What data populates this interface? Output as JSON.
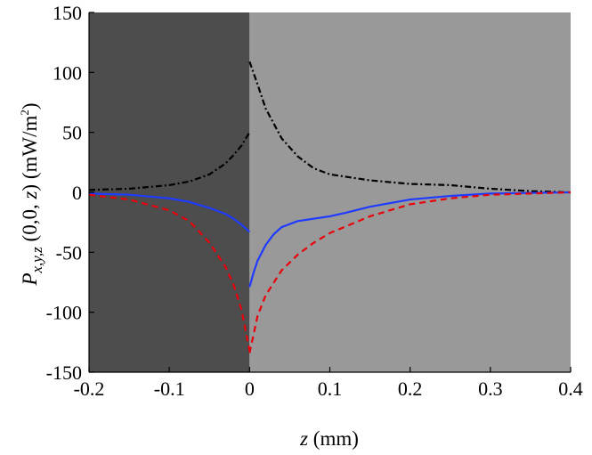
{
  "chart_data": {
    "type": "line",
    "xlabel": {
      "var": "z",
      "unit": " (mm)"
    },
    "ylabel": {
      "prefix": "P",
      "sub": "x,y,z",
      "args": " (0,0, ",
      "argvar": "z",
      "unit": ") (mW/m",
      "sup": "2",
      "close": ")"
    },
    "xlim": [
      -0.2,
      0.4
    ],
    "ylim": [
      -150,
      150
    ],
    "xticks": [
      -0.2,
      -0.1,
      0,
      0.1,
      0.2,
      0.3,
      0.4
    ],
    "xtick_labels": [
      "-0.2",
      "-0.1",
      "0",
      "0.1",
      "0.2",
      "0.3",
      "0.4"
    ],
    "yticks": [
      -150,
      -100,
      -50,
      0,
      50,
      100,
      150
    ],
    "ytick_labels": [
      "-150",
      "-100",
      "-50",
      "0",
      "50",
      "100",
      "150"
    ],
    "regions": [
      {
        "x": [
          -0.2,
          0
        ],
        "color": "#4d4d4d"
      },
      {
        "x": [
          0,
          0.4
        ],
        "color": "#999999"
      }
    ],
    "series": [
      {
        "color": "#000000",
        "dash": "dashdot",
        "x": [
          -0.2,
          -0.15,
          -0.1,
          -0.075,
          -0.05,
          -0.03,
          -0.02,
          -0.01,
          0,
          null,
          0,
          0.01,
          0.02,
          0.04,
          0.06,
          0.08,
          0.1,
          0.15,
          0.2,
          0.25,
          0.3,
          0.35,
          0.4
        ],
        "y": [
          2,
          3,
          6,
          9,
          15,
          24,
          31,
          39,
          50,
          null,
          109,
          90,
          70,
          45,
          30,
          20,
          15,
          10,
          7,
          6,
          3,
          1,
          0
        ]
      },
      {
        "color": "#1f3bff",
        "dash": "solid",
        "x": [
          -0.2,
          -0.15,
          -0.1,
          -0.075,
          -0.05,
          -0.03,
          -0.02,
          -0.01,
          0,
          null,
          0,
          0.005,
          0.01,
          0.02,
          0.03,
          0.04,
          0.06,
          0.08,
          0.1,
          0.12,
          0.15,
          0.2,
          0.25,
          0.3,
          0.35,
          0.4
        ],
        "y": [
          -1,
          -2,
          -5,
          -8,
          -13,
          -18,
          -22,
          -27,
          -33,
          null,
          -79,
          -67,
          -57,
          -44,
          -35,
          -29,
          -24,
          -22,
          -20,
          -17,
          -12,
          -6,
          -3,
          -1,
          -0.5,
          0
        ]
      },
      {
        "color": "#e8000b",
        "dash": "dashed",
        "x": [
          -0.2,
          -0.15,
          -0.1,
          -0.075,
          -0.05,
          -0.03,
          -0.02,
          -0.01,
          0,
          null,
          0,
          0.01,
          0.02,
          0.04,
          0.06,
          0.08,
          0.1,
          0.15,
          0.2,
          0.25,
          0.3,
          0.35,
          0.4
        ],
        "y": [
          -2,
          -6,
          -15,
          -24,
          -42,
          -62,
          -77,
          -98,
          -132,
          null,
          -134,
          -103,
          -86,
          -65,
          -52,
          -42,
          -34,
          -20,
          -10,
          -5,
          -2,
          -1,
          0
        ]
      }
    ]
  }
}
